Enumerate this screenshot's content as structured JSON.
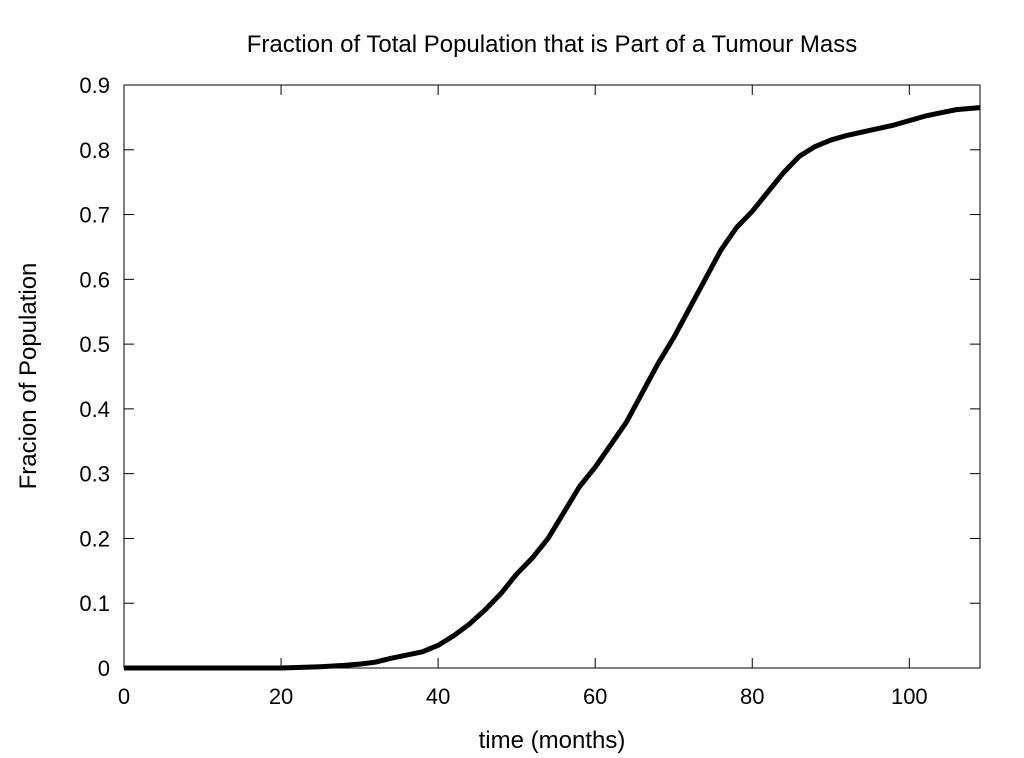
{
  "chart_data": {
    "type": "line",
    "title": "Fraction of Total Population that is Part of a Tumour Mass",
    "xlabel": "time (months)",
    "ylabel": "Fracion of Population",
    "xlim": [
      0,
      109
    ],
    "ylim": [
      0,
      0.9
    ],
    "x_ticks": [
      0,
      20,
      40,
      60,
      80,
      100
    ],
    "y_ticks": [
      0,
      0.1,
      0.2,
      0.3,
      0.4,
      0.5,
      0.6,
      0.7,
      0.8,
      0.9
    ],
    "x_tick_labels": [
      "0",
      "20",
      "40",
      "60",
      "80",
      "100"
    ],
    "y_tick_labels": [
      "0",
      "0.1",
      "0.2",
      "0.3",
      "0.4",
      "0.5",
      "0.6",
      "0.7",
      "0.8",
      "0.9"
    ],
    "grid": false,
    "series": [
      {
        "color": "#000000",
        "x": [
          0,
          10,
          20,
          25,
          28,
          30,
          32,
          34,
          36,
          38,
          40,
          42,
          44,
          46,
          48,
          50,
          52,
          54,
          56,
          58,
          60,
          62,
          64,
          66,
          68,
          70,
          72,
          74,
          76,
          78,
          80,
          82,
          84,
          86,
          88,
          90,
          92,
          95,
          98,
          100,
          102,
          104,
          106,
          109
        ],
        "y": [
          0,
          0,
          0,
          0.002,
          0.004,
          0.006,
          0.009,
          0.015,
          0.02,
          0.025,
          0.035,
          0.05,
          0.068,
          0.09,
          0.115,
          0.145,
          0.17,
          0.2,
          0.24,
          0.28,
          0.31,
          0.345,
          0.38,
          0.425,
          0.47,
          0.51,
          0.555,
          0.6,
          0.645,
          0.68,
          0.705,
          0.735,
          0.765,
          0.79,
          0.805,
          0.815,
          0.822,
          0.83,
          0.838,
          0.845,
          0.852,
          0.857,
          0.862,
          0.865
        ]
      }
    ]
  }
}
